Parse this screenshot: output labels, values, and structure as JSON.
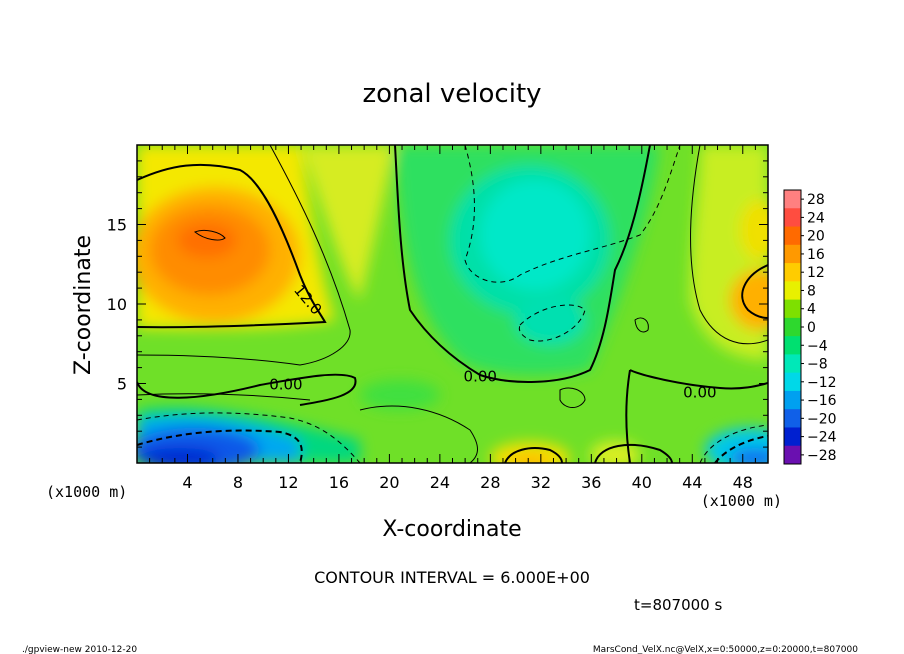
{
  "chart_data": {
    "type": "heatmap",
    "title": "zonal velocity",
    "xlabel": "X-coordinate",
    "ylabel": "Z-coordinate",
    "x_unit_label": "(x1000 m)",
    "y_unit_label": "(x1000 m)",
    "xlim": [
      0,
      50
    ],
    "ylim": [
      0,
      20
    ],
    "x_ticks": [
      4,
      8,
      12,
      16,
      20,
      24,
      28,
      32,
      36,
      40,
      44,
      48
    ],
    "y_ticks": [
      5,
      10,
      15
    ],
    "colorbar": {
      "labels": [
        "28",
        "24",
        "20",
        "16",
        "12",
        "8",
        "4",
        "0",
        "−4",
        "−8",
        "−12",
        "−16",
        "−20",
        "−24",
        "−28"
      ],
      "colors": [
        "#ff8080",
        "#ff4d40",
        "#ff6a00",
        "#ff9900",
        "#ffcc00",
        "#e8f000",
        "#7ee000",
        "#2ed82e",
        "#00e070",
        "#00e8b8",
        "#00d8e8",
        "#00a0f0",
        "#1060e8",
        "#0020d0",
        "#6a10b0"
      ]
    },
    "contour_labels": [
      {
        "text": "12.0",
        "x": 13.6,
        "z": 10.3
      },
      {
        "text": "0.00",
        "x": 11.8,
        "z": 5.0
      },
      {
        "text": "0.00",
        "x": 27.2,
        "z": 5.5
      },
      {
        "text": "0.00",
        "x": 44.6,
        "z": 4.5
      }
    ],
    "contour_interval": "CONTOUR INTERVAL = 6.000E+00",
    "time_label": "t=807000 s"
  },
  "footer": {
    "left": "./gpview-new  2010-12-20",
    "right": "MarsCond_VelX.nc@VelX,x=0:50000,z=0:20000,t=807000"
  }
}
